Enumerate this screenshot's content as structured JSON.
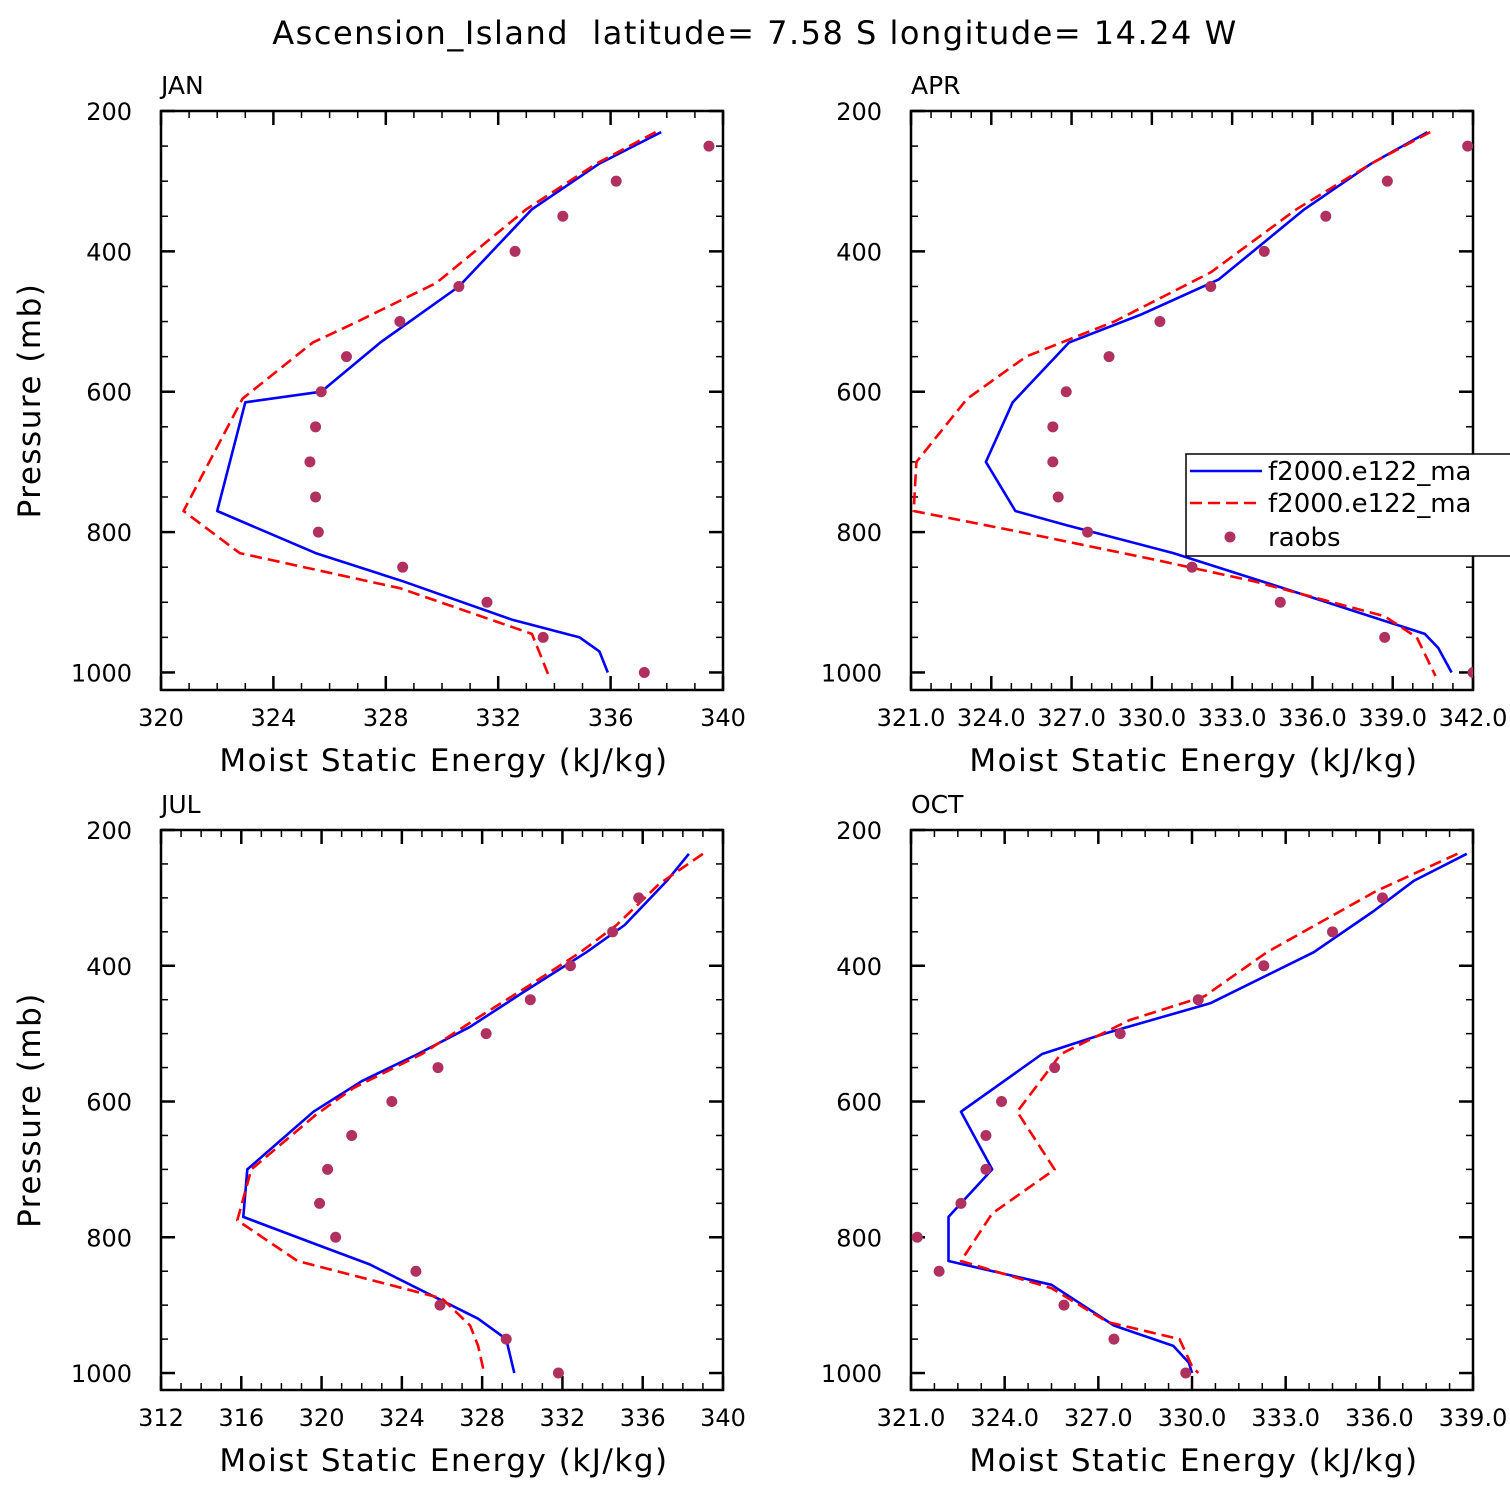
{
  "figure_title": "Ascension_Island  latitude= 7.58 S longitude= 14.24 W",
  "legend": {
    "entries": [
      "f2000.e122_ma",
      "f2000.e122_ma",
      "raobs"
    ],
    "colors": [
      "#0000ff",
      "#ff0000",
      "#b03060"
    ]
  },
  "chart_data": [
    {
      "type": "line",
      "panel": "JAN",
      "xlabel": "Moist Static Energy (kJ/kg)",
      "ylabel": "Pressure (mb)",
      "xlim": [
        320,
        340
      ],
      "ylim": [
        1025,
        200
      ],
      "xticks": [
        320,
        324,
        328,
        332,
        336,
        340
      ],
      "xtick_labels": [
        "320",
        "324",
        "328",
        "332",
        "336",
        "340"
      ],
      "yticks": [
        200,
        400,
        600,
        800,
        1000
      ],
      "ytick_labels": [
        "200",
        "400",
        "600",
        "800",
        "1000"
      ],
      "series": [
        {
          "name": "f2000.e122_ma",
          "style": "solid",
          "color": "#0000ff",
          "x": [
            337.8,
            335.6,
            333.2,
            330.6,
            327.8,
            325.7,
            323.0,
            322.0,
            325.5,
            328.6,
            332.5,
            334.9,
            335.6,
            335.9
          ],
          "y": [
            230,
            275,
            340,
            450,
            530,
            600,
            615,
            770,
            830,
            870,
            925,
            950,
            970,
            1000
          ]
        },
        {
          "name": "f2000.e122_ma",
          "style": "dashed",
          "color": "#ff0000",
          "x": [
            337.6,
            335.5,
            333.0,
            329.8,
            327.0,
            325.4,
            322.9,
            320.8,
            322.8,
            328.5,
            333.2,
            333.5,
            333.8
          ],
          "y": [
            230,
            275,
            340,
            445,
            500,
            530,
            610,
            770,
            830,
            880,
            945,
            975,
            1005
          ]
        },
        {
          "name": "raobs",
          "style": "markers",
          "color": "#b03060",
          "x": [
            339.5,
            336.2,
            334.3,
            332.6,
            330.6,
            328.5,
            326.6,
            325.7,
            325.5,
            325.3,
            325.5,
            325.6,
            328.6,
            331.6,
            333.6,
            337.2
          ],
          "y": [
            250,
            300,
            350,
            400,
            450,
            500,
            550,
            600,
            650,
            700,
            750,
            800,
            850,
            900,
            950,
            1000
          ]
        }
      ]
    },
    {
      "type": "line",
      "panel": "APR",
      "xlabel": "Moist Static Energy (kJ/kg)",
      "ylabel": "",
      "xlim": [
        321,
        342
      ],
      "ylim": [
        1025,
        200
      ],
      "xticks": [
        321,
        324,
        327,
        330,
        333,
        336,
        339,
        342
      ],
      "xtick_labels": [
        "321.0",
        "324.0",
        "327.0",
        "330.0",
        "333.0",
        "336.0",
        "339.0",
        "342.0"
      ],
      "yticks": [
        200,
        400,
        600,
        800,
        1000
      ],
      "ytick_labels": [
        "200",
        "400",
        "600",
        "800",
        "1000"
      ],
      "series": [
        {
          "name": "f2000.e122_ma",
          "style": "solid",
          "color": "#0000ff",
          "x": [
            340.3,
            338.2,
            335.7,
            332.5,
            329.6,
            326.9,
            324.8,
            323.8,
            324.9,
            326.8,
            330.8,
            334.1,
            340.2,
            340.7,
            341.2
          ],
          "y": [
            230,
            275,
            340,
            440,
            490,
            530,
            615,
            700,
            770,
            790,
            830,
            870,
            945,
            965,
            1000
          ]
        },
        {
          "name": "f2000.e122_ma",
          "style": "dashed",
          "color": "#ff0000",
          "x": [
            340.4,
            338.2,
            335.4,
            332.2,
            328.6,
            325.3,
            323.1,
            321.2,
            321.1,
            325.1,
            330.2,
            333.8,
            338.7,
            339.9,
            340.6
          ],
          "y": [
            230,
            275,
            340,
            430,
            500,
            550,
            610,
            700,
            770,
            800,
            840,
            870,
            920,
            950,
            1005
          ]
        },
        {
          "name": "raobs",
          "style": "markers",
          "color": "#b03060",
          "x": [
            341.8,
            338.8,
            336.5,
            334.2,
            332.2,
            330.3,
            328.4,
            326.8,
            326.3,
            326.3,
            326.5,
            327.6,
            331.5,
            334.8,
            338.7,
            342.0
          ],
          "y": [
            250,
            300,
            350,
            400,
            450,
            500,
            550,
            600,
            650,
            700,
            750,
            800,
            850,
            900,
            950,
            1000
          ]
        }
      ]
    },
    {
      "type": "line",
      "panel": "JUL",
      "xlabel": "Moist Static Energy (kJ/kg)",
      "ylabel": "Pressure (mb)",
      "xlim": [
        312,
        340
      ],
      "ylim": [
        1025,
        200
      ],
      "xticks": [
        312,
        316,
        320,
        324,
        328,
        332,
        336,
        340
      ],
      "xtick_labels": [
        "312",
        "316",
        "320",
        "324",
        "328",
        "332",
        "336",
        "340"
      ],
      "yticks": [
        200,
        400,
        600,
        800,
        1000
      ],
      "ytick_labels": [
        "200",
        "400",
        "600",
        "800",
        "1000"
      ],
      "series": [
        {
          "name": "f2000.e122_ma",
          "style": "solid",
          "color": "#0000ff",
          "x": [
            338.3,
            337.2,
            335.1,
            333.2,
            330.0,
            327.4,
            324.8,
            322.0,
            319.6,
            316.3,
            316.1,
            319.7,
            322.4,
            327.8,
            329.2,
            329.6
          ],
          "y": [
            235,
            275,
            340,
            380,
            440,
            490,
            530,
            570,
            615,
            700,
            770,
            810,
            840,
            920,
            950,
            1000
          ]
        },
        {
          "name": "f2000.e122_ma",
          "style": "dashed",
          "color": "#ff0000",
          "x": [
            339.0,
            336.8,
            334.7,
            332.9,
            330.3,
            327.6,
            325.0,
            321.6,
            319.7,
            316.5,
            315.8,
            318.8,
            326.0,
            327.4,
            327.8,
            328.1
          ],
          "y": [
            235,
            280,
            340,
            380,
            430,
            480,
            530,
            580,
            620,
            700,
            775,
            835,
            890,
            930,
            960,
            1000
          ]
        },
        {
          "name": "raobs",
          "style": "markers",
          "color": "#b03060",
          "x": [
            335.8,
            334.5,
            332.4,
            330.4,
            328.2,
            325.8,
            323.5,
            321.5,
            320.3,
            319.9,
            320.7,
            324.7,
            325.9,
            329.2,
            331.8
          ],
          "y": [
            300,
            350,
            400,
            450,
            500,
            550,
            600,
            650,
            700,
            750,
            800,
            850,
            900,
            950,
            1000
          ]
        }
      ]
    },
    {
      "type": "line",
      "panel": "OCT",
      "xlabel": "Moist Static Energy (kJ/kg)",
      "ylabel": "",
      "xlim": [
        321,
        339
      ],
      "ylim": [
        1025,
        200
      ],
      "xticks": [
        321,
        324,
        327,
        330,
        333,
        336,
        339
      ],
      "xtick_labels": [
        "321.0",
        "324.0",
        "327.0",
        "330.0",
        "333.0",
        "336.0",
        "339.0"
      ],
      "yticks": [
        200,
        400,
        600,
        800,
        1000
      ],
      "ytick_labels": [
        "200",
        "400",
        "600",
        "800",
        "1000"
      ],
      "series": [
        {
          "name": "f2000.e122_ma",
          "style": "solid",
          "color": "#0000ff",
          "x": [
            338.8,
            337.1,
            335.8,
            333.9,
            330.6,
            327.2,
            325.2,
            322.6,
            323.6,
            322.2,
            322.2,
            325.5,
            327.5,
            329.4,
            329.9,
            330.0
          ],
          "y": [
            235,
            275,
            320,
            380,
            455,
            500,
            530,
            615,
            700,
            770,
            835,
            870,
            930,
            960,
            985,
            1000
          ]
        },
        {
          "name": "f2000.e122_ma",
          "style": "dashed",
          "color": "#ff0000",
          "x": [
            338.5,
            335.9,
            332.4,
            330.4,
            328.0,
            325.8,
            324.4,
            325.6,
            323.6,
            322.6,
            325.5,
            327.3,
            329.6,
            330.0,
            330.2
          ],
          "y": [
            235,
            290,
            380,
            445,
            480,
            530,
            615,
            700,
            765,
            835,
            875,
            925,
            950,
            990,
            1000
          ]
        },
        {
          "name": "raobs",
          "style": "markers",
          "color": "#b03060",
          "x": [
            336.1,
            334.5,
            332.3,
            330.2,
            327.7,
            325.6,
            323.9,
            323.4,
            323.4,
            322.6,
            321.2,
            321.9,
            325.9,
            327.5,
            329.8
          ],
          "y": [
            300,
            350,
            400,
            450,
            500,
            550,
            600,
            650,
            700,
            750,
            800,
            850,
            900,
            950,
            1000
          ]
        }
      ]
    }
  ]
}
